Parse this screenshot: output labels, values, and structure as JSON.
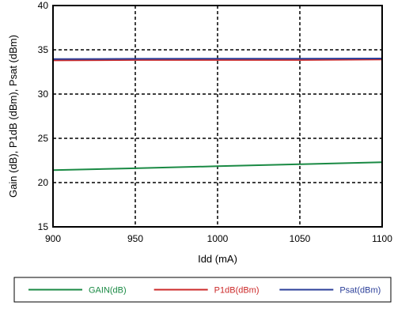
{
  "chart_data": {
    "type": "line",
    "title": "",
    "xlabel": "Idd (mA)",
    "ylabel": "Gain (dB), P1dB (dBm), Psat (dBm)",
    "xlim": [
      900,
      1100
    ],
    "ylim": [
      15,
      40
    ],
    "xticks": [
      900,
      950,
      1000,
      1050,
      1100
    ],
    "yticks": [
      15,
      20,
      25,
      30,
      35,
      40
    ],
    "grid": true,
    "legend_placement": "bottom",
    "x": [
      900,
      950,
      1000,
      1050,
      1100
    ],
    "series": [
      {
        "name": "GAIN(dB)",
        "color": "#1a8a44",
        "values": [
          21.4,
          21.62,
          21.85,
          22.07,
          22.3
        ]
      },
      {
        "name": "P1dB(dBm)",
        "color": "#cc2a2a",
        "values": [
          33.8,
          33.85,
          33.85,
          33.85,
          33.9
        ]
      },
      {
        "name": "Psat(dBm)",
        "color": "#2b3f99",
        "values": [
          33.95,
          33.98,
          34.0,
          34.0,
          34.02
        ]
      }
    ]
  }
}
